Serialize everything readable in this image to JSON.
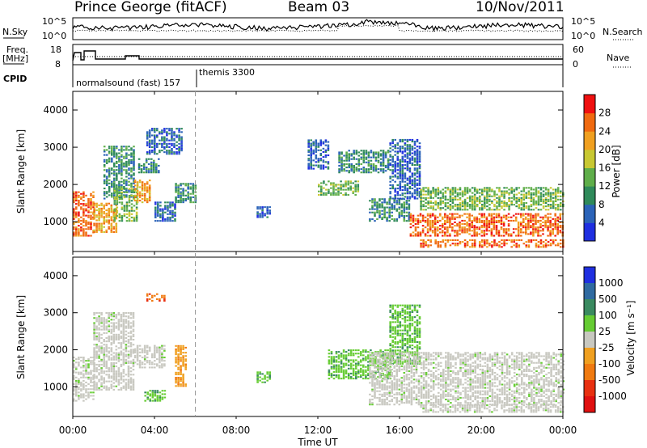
{
  "header": {
    "station": "Prince George (fitACF)",
    "beam": "Beam 03",
    "date": "10/Nov/2011"
  },
  "panels": {
    "noise": {
      "left_label": "N.Sky",
      "right_label": "N.Search",
      "left_ticks": [
        "10^5",
        "10^0"
      ],
      "right_ticks": [
        "10^5",
        "10^0"
      ]
    },
    "freq": {
      "left_label": "Freq.",
      "left_unit": "[MHz]",
      "right_label": "Nave",
      "left_ticks": [
        "18",
        "8"
      ],
      "right_ticks": [
        "60",
        "0"
      ]
    },
    "cpid": {
      "label": "CPID",
      "mode1": "normalsound (fast) 157",
      "mode2": "themis 3300"
    }
  },
  "chart_data": [
    {
      "type": "heatmap",
      "name": "Power",
      "ylabel": "Slant Range [km]",
      "yticks": [
        "1000",
        "2000",
        "3000",
        "4000"
      ],
      "ylim": [
        200,
        4500
      ],
      "colorbar": {
        "label": "Power [dB]",
        "tick_labels": [
          "4",
          "8",
          "12",
          "16",
          "20",
          "24",
          "28"
        ],
        "colors": [
          "#1f2fe0",
          "#2b63b8",
          "#2f8a5a",
          "#5fae4a",
          "#c8c832",
          "#f0a020",
          "#f06a10",
          "#f01010"
        ]
      },
      "regions": [
        {
          "t": [
            0.0,
            1.0
          ],
          "r": [
            600,
            1800
          ],
          "level": 28
        },
        {
          "t": [
            1.0,
            2.2
          ],
          "r": [
            700,
            1500
          ],
          "level": 24
        },
        {
          "t": [
            1.5,
            3.0
          ],
          "r": [
            1600,
            3000
          ],
          "level": 12
        },
        {
          "t": [
            2.0,
            3.2
          ],
          "r": [
            1000,
            1900
          ],
          "level": 16
        },
        {
          "t": [
            3.0,
            3.8
          ],
          "r": [
            1500,
            2100
          ],
          "level": 24
        },
        {
          "t": [
            3.2,
            4.2
          ],
          "r": [
            2300,
            2700
          ],
          "level": 12
        },
        {
          "t": [
            3.6,
            5.4
          ],
          "r": [
            2800,
            3500
          ],
          "level": 8
        },
        {
          "t": [
            4.0,
            5.0
          ],
          "r": [
            1000,
            1500
          ],
          "level": 8
        },
        {
          "t": [
            5.0,
            6.0
          ],
          "r": [
            1500,
            2000
          ],
          "level": 12
        },
        {
          "t": [
            9.0,
            9.6
          ],
          "r": [
            1100,
            1400
          ],
          "level": 8
        },
        {
          "t": [
            11.5,
            12.5
          ],
          "r": [
            2400,
            3200
          ],
          "level": 8
        },
        {
          "t": [
            12.0,
            14.0
          ],
          "r": [
            1700,
            2100
          ],
          "level": 16
        },
        {
          "t": [
            13.0,
            15.5
          ],
          "r": [
            2300,
            2900
          ],
          "level": 12
        },
        {
          "t": [
            14.5,
            16.5
          ],
          "r": [
            1000,
            1600
          ],
          "level": 12
        },
        {
          "t": [
            15.5,
            17.0
          ],
          "r": [
            1600,
            3200
          ],
          "level": 8
        },
        {
          "t": [
            16.5,
            24.0
          ],
          "r": [
            600,
            1200
          ],
          "level": 28
        },
        {
          "t": [
            17.0,
            24.0
          ],
          "r": [
            300,
            500
          ],
          "level": 28
        },
        {
          "t": [
            17.0,
            24.0
          ],
          "r": [
            1300,
            1900
          ],
          "level": 16
        }
      ]
    },
    {
      "type": "heatmap",
      "name": "Velocity",
      "ylabel": "Slant Range [km]",
      "yticks": [
        "1000",
        "2000",
        "3000",
        "4000"
      ],
      "ylim": [
        200,
        4500
      ],
      "colorbar": {
        "label": "Velocity [m s⁻¹]",
        "tick_labels": [
          "1000",
          "500",
          "100",
          "25",
          "-25",
          "-100",
          "-500",
          "-1000"
        ],
        "colors": [
          "#1f2fe0",
          "#2f6aa0",
          "#3a8a60",
          "#66cc33",
          "#c8c8c0",
          "#f0a020",
          "#f07a10",
          "#e83010",
          "#e01010"
        ]
      },
      "regions": [
        {
          "t": [
            0.0,
            1.0
          ],
          "r": [
            600,
            1800
          ],
          "v": 0
        },
        {
          "t": [
            1.0,
            3.0
          ],
          "r": [
            900,
            3000
          ],
          "v": 0
        },
        {
          "t": [
            3.0,
            4.5
          ],
          "r": [
            1500,
            2100
          ],
          "v": 0
        },
        {
          "t": [
            3.5,
            4.5
          ],
          "r": [
            600,
            900
          ],
          "v": 60
        },
        {
          "t": [
            5.0,
            5.5
          ],
          "r": [
            1000,
            2100
          ],
          "v": -60
        },
        {
          "t": [
            3.6,
            4.5
          ],
          "r": [
            3300,
            3500
          ],
          "v": -300
        },
        {
          "t": [
            9.0,
            9.6
          ],
          "r": [
            1100,
            1400
          ],
          "v": 60
        },
        {
          "t": [
            12.5,
            15.5
          ],
          "r": [
            1200,
            2000
          ],
          "v": 60
        },
        {
          "t": [
            15.5,
            17.0
          ],
          "r": [
            1600,
            3200
          ],
          "v": 60
        },
        {
          "t": [
            14.5,
            24.0
          ],
          "r": [
            500,
            1900
          ],
          "v": 0
        },
        {
          "t": [
            17.0,
            24.0
          ],
          "r": [
            300,
            500
          ],
          "v": 0
        }
      ]
    }
  ],
  "x_axis": {
    "label": "Time UT",
    "ticks": [
      "00:00",
      "04:00",
      "08:00",
      "12:00",
      "16:00",
      "20:00",
      "00:00"
    ],
    "range_hours": [
      0,
      24
    ],
    "mode_change_hour": 6.0
  }
}
